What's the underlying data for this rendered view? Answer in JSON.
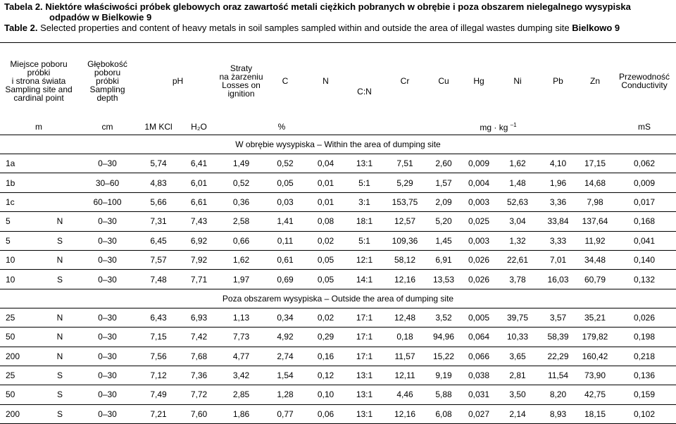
{
  "caption": {
    "pl": {
      "label": "Tabela 2.",
      "text": "Niektóre właściwości próbek glebowych oraz zawartość metali ciężkich pobranych  w obrębie i poza obszarem nielegalnego wysypiska odpadów w Bielkowie 9"
    },
    "en": {
      "label": "Table 2.",
      "text": "Selected properties and content of heavy metals in  soil samples sampled within and outside the area of illegal wastes dumping site",
      "site": "Bielkowo 9"
    }
  },
  "table": {
    "headers": [
      [
        "Miejsce poboru",
        "próbki",
        "i strona świata",
        "Sampling site and",
        "cardinal point"
      ],
      [
        "Głębokość",
        "poboru",
        "próbki",
        "Sampling",
        "depth"
      ],
      [
        "pH"
      ],
      [
        "Straty",
        "na żarzeniu",
        "Losses on",
        "ignition"
      ],
      [
        "C"
      ],
      [
        "N"
      ],
      [
        "C:N"
      ],
      [
        "Cr"
      ],
      [
        "Cu"
      ],
      [
        "Hg"
      ],
      [
        "Ni"
      ],
      [
        "Pb"
      ],
      [
        "Zn"
      ],
      [
        "Przewodność",
        "Conductivity"
      ]
    ],
    "units": {
      "m": "m",
      "cm": "cm",
      "kcl": "1M KCl",
      "h2o": "H₂O",
      "pct": "%",
      "metals": {
        "base": "mg · kg",
        "exp": "–1"
      },
      "ms": "mS"
    },
    "sections": [
      {
        "title": "W obrębie wysypiska – Within the area of dumping site",
        "rows": [
          [
            "1a",
            "0–30",
            "5,74",
            "6,41",
            "1,49",
            "0,52",
            "0,04",
            "13:1",
            "7,51",
            "2,60",
            "0,009",
            "1,62",
            "4,10",
            "17,15",
            "0,062"
          ],
          [
            "1b",
            "30–60",
            "4,83",
            "6,01",
            "0,52",
            "0,05",
            "0,01",
            "5:1",
            "5,29",
            "1,57",
            "0,004",
            "1,48",
            "1,96",
            "14,68",
            "0,009"
          ],
          [
            "1c",
            "60–100",
            "5,66",
            "6,61",
            "0,36",
            "0,03",
            "0,01",
            "3:1",
            "153,75",
            "2,09",
            "0,003",
            "52,63",
            "3,36",
            "7,98",
            "0,017"
          ],
          [
            "5",
            "N",
            "0–30",
            "7,31",
            "7,43",
            "2,58",
            "1,41",
            "0,08",
            "18:1",
            "12,57",
            "5,20",
            "0,025",
            "3,04",
            "33,84",
            "137,64",
            "0,168"
          ],
          [
            "5",
            "S",
            "0–30",
            "6,45",
            "6,92",
            "0,66",
            "0,11",
            "0,02",
            "5:1",
            "109,36",
            "1,45",
            "0,003",
            "1,32",
            "3,33",
            "11,92",
            "0,041"
          ],
          [
            "10",
            "N",
            "0–30",
            "7,57",
            "7,92",
            "1,62",
            "0,61",
            "0,05",
            "12:1",
            "58,12",
            "6,91",
            "0,026",
            "22,61",
            "7,01",
            "34,48",
            "0,140"
          ],
          [
            "10",
            "S",
            "0–30",
            "7,48",
            "7,71",
            "1,97",
            "0,69",
            "0,05",
            "14:1",
            "12,16",
            "13,53",
            "0,026",
            "3,78",
            "16,03",
            "60,79",
            "0,132"
          ]
        ]
      },
      {
        "title": "Poza obszarem wysypiska – Outside the area of dumping site",
        "rows": [
          [
            "25",
            "N",
            "0–30",
            "6,43",
            "6,93",
            "1,13",
            "0,34",
            "0,02",
            "17:1",
            "12,48",
            "3,52",
            "0,005",
            "39,75",
            "3,57",
            "35,21",
            "0,026"
          ],
          [
            "50",
            "N",
            "0–30",
            "7,15",
            "7,42",
            "7,73",
            "4,92",
            "0,29",
            "17:1",
            "0,18",
            "94,96",
            "0,064",
            "10,33",
            "58,39",
            "179,82",
            "0,198"
          ],
          [
            "200",
            "N",
            "0–30",
            "7,56",
            "7,68",
            "4,77",
            "2,74",
            "0,16",
            "17:1",
            "11,57",
            "15,22",
            "0,066",
            "3,65",
            "22,29",
            "160,42",
            "0,218"
          ],
          [
            "25",
            "S",
            "0–30",
            "7,12",
            "7,36",
            "3,42",
            "1,54",
            "0,12",
            "13:1",
            "12,11",
            "9,19",
            "0,038",
            "2,81",
            "11,54",
            "73,90",
            "0,136"
          ],
          [
            "50",
            "S",
            "0–30",
            "7,49",
            "7,72",
            "2,85",
            "1,28",
            "0,10",
            "13:1",
            "4,46",
            "5,88",
            "0,031",
            "3,50",
            "8,20",
            "42,75",
            "0,159"
          ],
          [
            "200",
            "S",
            "0–30",
            "7,21",
            "7,60",
            "1,86",
            "0,77",
            "0,06",
            "13:1",
            "12,16",
            "6,08",
            "0,027",
            "2,14",
            "8,93",
            "18,15",
            "0,102"
          ]
        ]
      }
    ]
  }
}
